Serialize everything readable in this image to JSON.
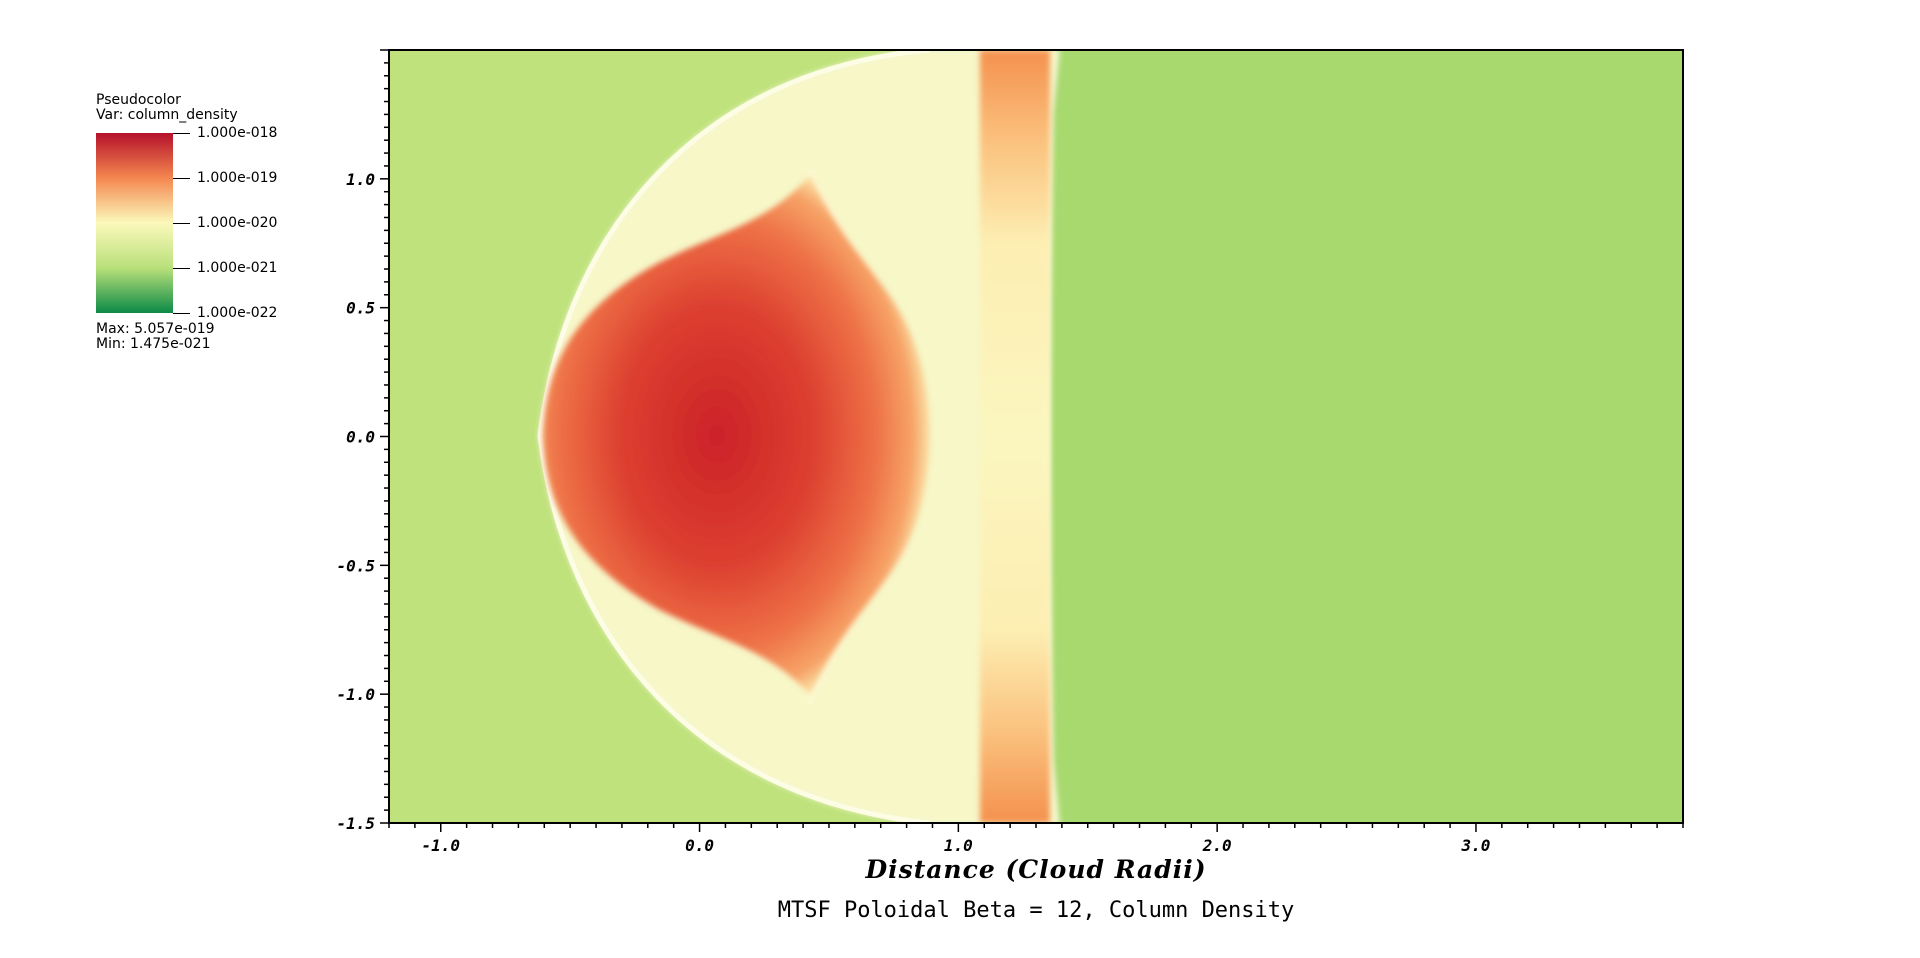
{
  "legend": {
    "line1": "Pseudocolor",
    "line2": "Var: column_density",
    "ticks": [
      "1.000e-018",
      "1.000e-019",
      "1.000e-020",
      "1.000e-021",
      "1.000e-022"
    ],
    "max_label": "Max:  5.057e-019",
    "min_label": "Min:  1.475e-021",
    "colors": [
      "#b5112b",
      "#f4874f",
      "#fbf9bb",
      "#b9e07a",
      "#0c8a47"
    ]
  },
  "chart_data": {
    "type": "heatmap",
    "title": "MTSF Poloidal Beta = 12, Column Density",
    "xlabel": "Distance (Cloud Radii)",
    "ylabel": "",
    "xlim": [
      -1.2,
      3.8
    ],
    "ylim": [
      -1.5,
      1.5
    ],
    "x_ticks": [
      "-1.0",
      "0.0",
      "1.0",
      "2.0",
      "3.0"
    ],
    "x_tick_values": [
      -1.0,
      0.0,
      1.0,
      2.0,
      3.0
    ],
    "y_ticks": [
      "1.0",
      "0.5",
      "0.0",
      "-0.5",
      "-1.0",
      "-1.5"
    ],
    "y_tick_values": [
      1.0,
      0.5,
      0.0,
      -0.5,
      -1.0,
      -1.5
    ],
    "colorbar_scale": "log",
    "colorbar_range": [
      1e-22,
      1e-18
    ],
    "max": 5.057e-19,
    "min": 1.475e-21,
    "background_color_left": "#bfe27c",
    "background_color_right": "#a8d96f"
  }
}
